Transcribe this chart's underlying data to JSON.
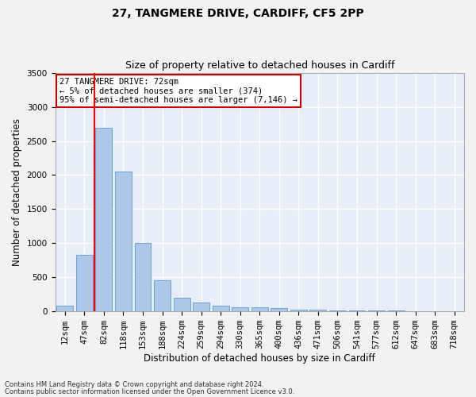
{
  "title": "27, TANGMERE DRIVE, CARDIFF, CF5 2PP",
  "subtitle": "Size of property relative to detached houses in Cardiff",
  "xlabel": "Distribution of detached houses by size in Cardiff",
  "ylabel": "Number of detached properties",
  "categories": [
    "12sqm",
    "47sqm",
    "82sqm",
    "118sqm",
    "153sqm",
    "188sqm",
    "224sqm",
    "259sqm",
    "294sqm",
    "330sqm",
    "365sqm",
    "400sqm",
    "436sqm",
    "471sqm",
    "506sqm",
    "541sqm",
    "577sqm",
    "612sqm",
    "647sqm",
    "683sqm",
    "718sqm"
  ],
  "values": [
    80,
    830,
    2700,
    2050,
    1000,
    450,
    200,
    130,
    75,
    60,
    50,
    40,
    20,
    15,
    10,
    8,
    5,
    3,
    2,
    1,
    1
  ],
  "bar_color": "#aec6e8",
  "bar_edge_color": "#5b9bd5",
  "red_line_x": 1.5,
  "annotation_text": "27 TANGMERE DRIVE: 72sqm\n← 5% of detached houses are smaller (374)\n95% of semi-detached houses are larger (7,146) →",
  "annotation_box_color": "#ffffff",
  "annotation_box_edge": "#cc0000",
  "footer1": "Contains HM Land Registry data © Crown copyright and database right 2024.",
  "footer2": "Contains public sector information licensed under the Open Government Licence v3.0.",
  "ylim": [
    0,
    3500
  ],
  "background_color": "#e8eef8",
  "grid_color": "#ffffff",
  "title_fontsize": 10,
  "subtitle_fontsize": 9,
  "axis_label_fontsize": 8.5,
  "tick_fontsize": 7.5,
  "footer_fontsize": 6
}
